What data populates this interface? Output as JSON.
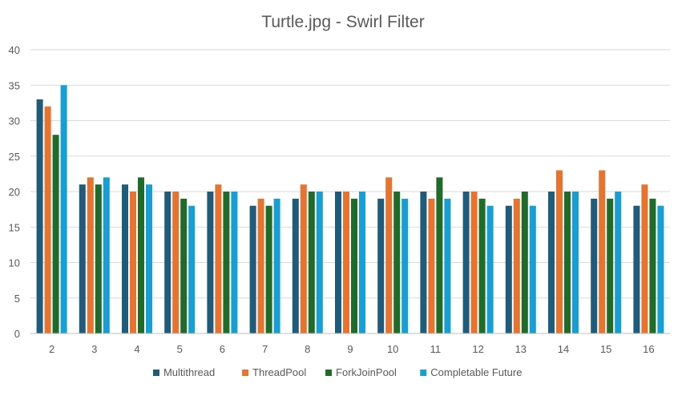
{
  "chart_data": {
    "type": "bar",
    "title": "Turtle.jpg - Swirl Filter",
    "xlabel": "",
    "ylabel": "",
    "ylim": [
      0,
      40
    ],
    "yticks": [
      0,
      5,
      10,
      15,
      20,
      25,
      30,
      35,
      40
    ],
    "grid": true,
    "legend_position": "bottom",
    "categories": [
      "2",
      "3",
      "4",
      "5",
      "6",
      "7",
      "8",
      "9",
      "10",
      "11",
      "12",
      "13",
      "14",
      "15",
      "16"
    ],
    "series": [
      {
        "name": "Multithread",
        "color": "#1f5b7a",
        "values": [
          33,
          21,
          21,
          20,
          20,
          18,
          19,
          20,
          19,
          20,
          20,
          18,
          20,
          19,
          18
        ]
      },
      {
        "name": "ThreadPool",
        "color": "#e8732f",
        "values": [
          32,
          22,
          20,
          20,
          21,
          19,
          21,
          20,
          22,
          19,
          20,
          19,
          23,
          23,
          21
        ]
      },
      {
        "name": "ForkJoinPool",
        "color": "#1e6b2a",
        "values": [
          28,
          21,
          22,
          19,
          20,
          18,
          20,
          19,
          20,
          22,
          19,
          20,
          20,
          19,
          19
        ]
      },
      {
        "name": "Completable Future",
        "color": "#159fd4",
        "values": [
          35,
          22,
          21,
          18,
          20,
          19,
          20,
          20,
          19,
          19,
          18,
          18,
          20,
          20,
          18
        ]
      }
    ]
  }
}
